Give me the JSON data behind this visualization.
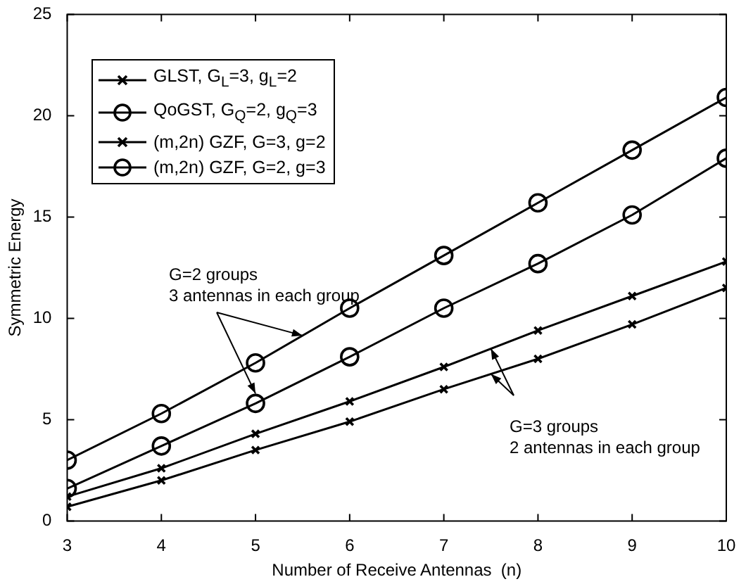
{
  "chart_data": {
    "type": "line",
    "xlabel": "Number of Receive Antennas  (n)",
    "ylabel": "Symmetric Energy",
    "x": [
      3,
      4,
      5,
      6,
      7,
      8,
      9,
      10
    ],
    "xlim": [
      3,
      10
    ],
    "xticks": [
      3,
      4,
      5,
      6,
      7,
      8,
      9,
      10
    ],
    "ylim": [
      0,
      25
    ],
    "yticks": [
      0,
      5,
      10,
      15,
      20,
      25
    ],
    "grid": false,
    "legend": "top left",
    "line_style": "solid",
    "series": [
      {
        "name": "GLST, G$_{L}$=3, g$_{L}$=2",
        "color": "#000000",
        "marker": "cross",
        "values": [
          0.7,
          2.0,
          3.5,
          4.9,
          6.5,
          8.0,
          9.7,
          11.5
        ]
      },
      {
        "name": "QoGST, G$_{Q}$=2, g$_{Q}$=3",
        "color": "#000000",
        "marker": "circle",
        "values": [
          1.6,
          3.7,
          5.8,
          8.1,
          10.5,
          12.7,
          15.1,
          17.9
        ]
      },
      {
        "name": "(m,2n) GZF, G=3, g=2",
        "color": "#000000",
        "marker": "cross",
        "values": [
          1.2,
          2.6,
          4.3,
          5.9,
          7.6,
          9.4,
          11.1,
          12.8
        ]
      },
      {
        "name": "(m,2n) GZF, G=2, g=3",
        "color": "#000000",
        "marker": "circle",
        "values": [
          3.0,
          5.3,
          7.8,
          10.5,
          13.1,
          15.7,
          18.3,
          20.9
        ]
      }
    ],
    "annotations": [
      {
        "text": "G=2 groups\n3 antennas in each group",
        "x": 5.5,
        "y": 9.15
      },
      {
        "text": "G=3 groups\n2 antennas in each group",
        "x": 7.5,
        "y": 8.5
      }
    ]
  }
}
